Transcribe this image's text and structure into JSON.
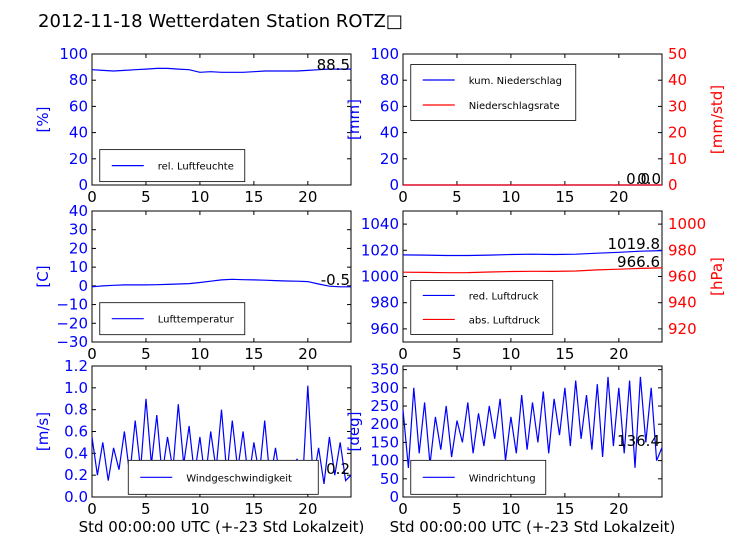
{
  "title": "2012-11-18 Wetterdaten Station ROTZ□",
  "xlabel": "Std 00:00:00 UTC (+-23 Std Lokalzeit)",
  "colors": {
    "primary": "#0000ff",
    "secondary": "#ff0000",
    "axis": "#000000"
  },
  "chart_data": [
    {
      "id": "humidity",
      "type": "line",
      "xlim": [
        0,
        24
      ],
      "ylim": [
        0,
        100
      ],
      "yticks": [
        0,
        20,
        40,
        60,
        80,
        100
      ],
      "xticks": [
        0,
        5,
        10,
        15,
        20
      ],
      "ylabel": "[%]",
      "legend": [
        "rel. Luftfeuchte"
      ],
      "legend_loc": "lower-left",
      "annotation": "88.5",
      "series": [
        {
          "name": "rel. Luftfeuchte",
          "color": "#0000ff",
          "x": [
            0,
            1,
            2,
            3,
            4,
            5,
            6,
            7,
            8,
            9,
            10,
            11,
            12,
            13,
            14,
            15,
            16,
            17,
            18,
            19,
            20,
            21,
            22,
            23,
            24
          ],
          "y": [
            88,
            87.5,
            87,
            87.5,
            88,
            88.5,
            89,
            89,
            88.5,
            88,
            86,
            86.5,
            86,
            86,
            86,
            86.5,
            87,
            87,
            87,
            87,
            87.5,
            88,
            88.5,
            88.5,
            88.5
          ]
        }
      ]
    },
    {
      "id": "precipitation",
      "type": "line",
      "xlim": [
        0,
        24
      ],
      "ylim": [
        0,
        100
      ],
      "yticks": [
        0,
        20,
        40,
        60,
        80,
        100
      ],
      "xticks": [
        0,
        5,
        10,
        15,
        20
      ],
      "ylabel": "[mm]",
      "y2lim": [
        0,
        50
      ],
      "y2ticks": [
        0,
        10,
        20,
        30,
        40,
        50
      ],
      "y2label": "[mm/std]",
      "legend": [
        "kum. Niederschlag",
        "Niederschlagsrate"
      ],
      "legend_loc": "upper-left",
      "annotations": [
        "0.0",
        "0.0"
      ],
      "series": [
        {
          "name": "kum. Niederschlag",
          "color": "#0000ff",
          "axis": "left",
          "x": [
            0,
            24
          ],
          "y": [
            0,
            0
          ]
        },
        {
          "name": "Niederschlagsrate",
          "color": "#ff0000",
          "axis": "right",
          "x": [
            0,
            24
          ],
          "y": [
            0,
            0
          ]
        }
      ]
    },
    {
      "id": "temperature",
      "type": "line",
      "xlim": [
        0,
        24
      ],
      "ylim": [
        -30,
        40
      ],
      "yticks": [
        -30,
        -20,
        -10,
        0,
        10,
        20,
        30,
        40
      ],
      "xticks": [
        0,
        5,
        10,
        15,
        20
      ],
      "ylabel": "[C]",
      "legend": [
        "Lufttemperatur"
      ],
      "legend_loc": "lower-left",
      "annotation": "-0.5",
      "series": [
        {
          "name": "Lufttemperatur",
          "color": "#0000ff",
          "x": [
            0,
            1,
            2,
            3,
            4,
            5,
            6,
            7,
            8,
            9,
            10,
            11,
            12,
            13,
            14,
            15,
            16,
            17,
            18,
            19,
            20,
            21,
            22,
            23,
            24
          ],
          "y": [
            -0.5,
            0,
            0.3,
            0.5,
            0.5,
            0.5,
            0.6,
            0.8,
            1,
            1.2,
            1.8,
            2.5,
            3.2,
            3.5,
            3.3,
            3.2,
            3,
            2.8,
            2.6,
            2.5,
            2.3,
            1,
            -0.2,
            -0.5,
            -0.5
          ]
        }
      ]
    },
    {
      "id": "pressure",
      "type": "line",
      "xlim": [
        0,
        24
      ],
      "ylim": [
        950,
        1050
      ],
      "yticks": [
        960,
        980,
        1000,
        1020,
        1040
      ],
      "xticks": [
        0,
        5,
        10,
        15,
        20
      ],
      "y2lim": [
        910,
        1010
      ],
      "y2ticks": [
        920,
        940,
        960,
        980,
        1000
      ],
      "y2label": "[hPa]",
      "legend": [
        "red. Luftdruck",
        "abs. Luftdruck"
      ],
      "legend_loc": "lower-left",
      "annotations": [
        "1019.8",
        "966.6"
      ],
      "series": [
        {
          "name": "red. Luftdruck",
          "color": "#0000ff",
          "axis": "left",
          "x": [
            0,
            2,
            4,
            6,
            8,
            10,
            12,
            14,
            16,
            18,
            20,
            22,
            24
          ],
          "y": [
            1016.5,
            1016.3,
            1016,
            1016,
            1016.3,
            1016.8,
            1017,
            1016.8,
            1017,
            1017.8,
            1018.5,
            1019.3,
            1019.8
          ]
        },
        {
          "name": "abs. Luftdruck",
          "color": "#ff0000",
          "axis": "right",
          "x": [
            0,
            2,
            4,
            6,
            8,
            10,
            12,
            14,
            16,
            18,
            20,
            22,
            24
          ],
          "y": [
            963.3,
            963.1,
            962.9,
            963,
            963.4,
            963.8,
            964,
            963.9,
            964.2,
            965,
            965.6,
            966.2,
            966.6
          ]
        }
      ]
    },
    {
      "id": "wind_speed",
      "type": "line",
      "xlim": [
        0,
        24
      ],
      "ylim": [
        0,
        1.2
      ],
      "yticks": [
        0.0,
        0.2,
        0.4,
        0.6,
        0.8,
        1.0,
        1.2
      ],
      "xticks": [
        0,
        5,
        10,
        15,
        20
      ],
      "ylabel": "[m/s]",
      "xlabel": "Std 00:00:00 UTC (+-23 Std Lokalzeit)",
      "legend": [
        "Windgeschwindigkeit"
      ],
      "legend_loc": "lower-left",
      "annotation": "0.2",
      "series": [
        {
          "name": "Windgeschwindigkeit",
          "color": "#0000ff",
          "x": [
            0,
            0.5,
            1,
            1.5,
            2,
            2.5,
            3,
            3.5,
            4,
            4.5,
            5,
            5.5,
            6,
            6.5,
            7,
            7.5,
            8,
            8.5,
            9,
            9.5,
            10,
            10.5,
            11,
            11.5,
            12,
            12.5,
            13,
            13.5,
            14,
            14.5,
            15,
            15.5,
            16,
            16.5,
            17,
            17.5,
            18,
            18.5,
            19,
            19.5,
            20,
            20.5,
            21,
            21.5,
            22,
            22.5,
            23,
            23.5,
            24
          ],
          "y": [
            0.55,
            0.2,
            0.5,
            0.15,
            0.45,
            0.25,
            0.6,
            0.2,
            0.7,
            0.25,
            0.9,
            0.3,
            0.75,
            0.2,
            0.55,
            0.25,
            0.85,
            0.3,
            0.65,
            0.2,
            0.55,
            0.15,
            0.6,
            0.25,
            0.8,
            0.2,
            0.7,
            0.25,
            0.6,
            0.15,
            0.5,
            0.2,
            0.7,
            0.15,
            0.45,
            0.12,
            0.3,
            0.1,
            0.35,
            0.1,
            1.02,
            0.15,
            0.45,
            0.12,
            0.55,
            0.2,
            0.5,
            0.15,
            0.2
          ]
        }
      ]
    },
    {
      "id": "wind_direction",
      "type": "line",
      "xlim": [
        0,
        24
      ],
      "ylim": [
        0,
        360
      ],
      "yticks": [
        0,
        50,
        100,
        150,
        200,
        250,
        300,
        350
      ],
      "xticks": [
        0,
        5,
        10,
        15,
        20
      ],
      "ylabel": "[deg]",
      "xlabel": "Std 00:00:00 UTC (+-23 Std Lokalzeit)",
      "legend": [
        "Windrichtung"
      ],
      "legend_loc": "lower-left",
      "annotation": "136.4",
      "series": [
        {
          "name": "Windrichtung",
          "color": "#0000ff",
          "x": [
            0,
            0.5,
            1,
            1.5,
            2,
            2.5,
            3,
            3.5,
            4,
            4.5,
            5,
            5.5,
            6,
            6.5,
            7,
            7.5,
            8,
            8.5,
            9,
            9.5,
            10,
            10.5,
            11,
            11.5,
            12,
            12.5,
            13,
            13.5,
            14,
            14.5,
            15,
            15.5,
            16,
            16.5,
            17,
            17.5,
            18,
            18.5,
            19,
            19.5,
            20,
            20.5,
            21,
            21.5,
            22,
            22.5,
            23,
            23.5,
            24
          ],
          "y": [
            240,
            80,
            300,
            120,
            260,
            90,
            220,
            130,
            250,
            110,
            210,
            150,
            260,
            120,
            230,
            140,
            250,
            160,
            270,
            100,
            220,
            120,
            280,
            130,
            260,
            150,
            290,
            120,
            270,
            170,
            300,
            140,
            320,
            160,
            280,
            130,
            310,
            110,
            330,
            140,
            300,
            120,
            320,
            80,
            330,
            150,
            300,
            100,
            136
          ]
        }
      ]
    }
  ]
}
